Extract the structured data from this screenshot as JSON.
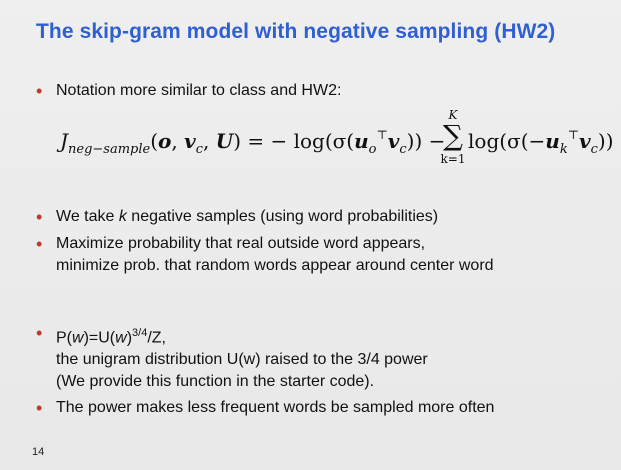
{
  "title": "The skip-gram model with negative sampling (HW2)",
  "bullets": {
    "b1": "Notation more similar to class and HW2:",
    "b2_pre": "We take ",
    "b2_k": "k",
    "b2_post": " negative samples (using word probabilities)",
    "b3_line1": "Maximize probability that real outside word appears,",
    "b3_line2": "minimize prob. that random words appear around center word",
    "b4_line1_pre": "P(",
    "b4_w1": "w",
    "b4_mid1": ")=U(",
    "b4_w2": "w",
    "b4_mid2": ")",
    "b4_exp": "3/4",
    "b4_tail": "/Z,",
    "b4_line2": "the unigram distribution U(w) raised to the 3/4 power",
    "b4_line3": "(We provide this function in the starter code).",
    "b5": "The power makes less frequent words be sampled more often"
  },
  "formula": {
    "J": "J",
    "J_sub": "neg−sample",
    "args_open": "(",
    "o": "o",
    "comma1": ", ",
    "v": "v",
    "v_sub": "c",
    "comma2": ", ",
    "U": "U",
    "args_close": ") = − log(σ(",
    "u": "u",
    "u_sub": "o",
    "u_sup": "⊤",
    "v2": "v",
    "v2_sub": "c",
    "close1": ")) −",
    "sum_top": "K",
    "sum_sym": "∑",
    "sum_bot": "k=1",
    "rhs_open": "log(σ(−",
    "u3": "u",
    "u3_sub": "k",
    "u3_sup": "⊤",
    "v3": "v",
    "v3_sub": "c",
    "rhs_close": "))"
  },
  "page_number": "14"
}
